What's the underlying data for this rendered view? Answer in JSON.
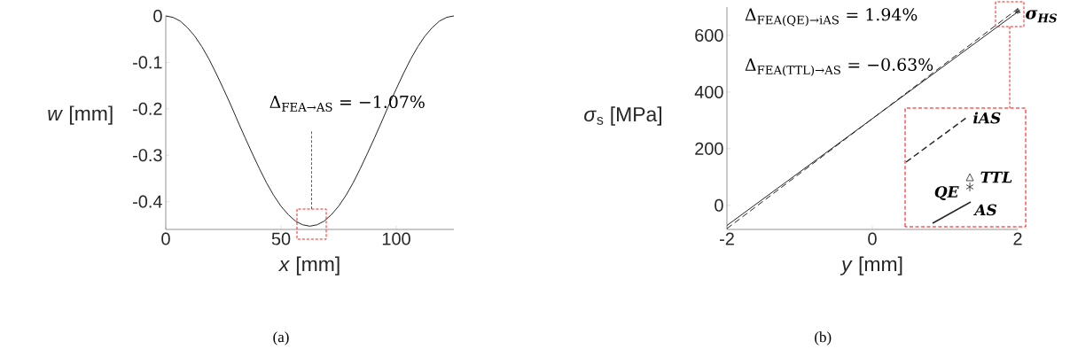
{
  "chart_data": [
    {
      "type": "line",
      "xlabel": "*x* [mm]",
      "ylabel": "*w* [mm]",
      "xlim": [
        0,
        125
      ],
      "ylim": [
        -0.46,
        0
      ],
      "xticks": [
        0,
        50,
        100
      ],
      "yticks": [
        0,
        -0.1,
        -0.2,
        -0.3,
        -0.4
      ],
      "x": [
        0,
        3.125,
        6.25,
        9.375,
        12.5,
        15.625,
        18.75,
        21.875,
        25,
        28.125,
        31.25,
        34.375,
        37.5,
        40.625,
        43.75,
        46.875,
        50,
        53.125,
        56.25,
        59.375,
        62.5,
        65.625,
        68.75,
        71.875,
        75,
        78.125,
        81.25,
        84.375,
        87.5,
        90.625,
        93.75,
        96.875,
        100,
        103.125,
        106.25,
        109.375,
        112.5,
        115.625,
        118.75,
        121.875,
        125
      ],
      "series": [
        {
          "color": "#222222",
          "line_style": "solid",
          "values": [
            0,
            -0.003,
            -0.011,
            -0.025,
            -0.043,
            -0.066,
            -0.093,
            -0.124,
            -0.157,
            -0.191,
            -0.227,
            -0.262,
            -0.296,
            -0.329,
            -0.36,
            -0.387,
            -0.41,
            -0.428,
            -0.442,
            -0.45,
            -0.453,
            -0.45,
            -0.442,
            -0.428,
            -0.41,
            -0.387,
            -0.36,
            -0.329,
            -0.296,
            -0.262,
            -0.227,
            -0.191,
            -0.157,
            -0.124,
            -0.093,
            -0.066,
            -0.043,
            -0.025,
            -0.011,
            -0.003,
            0
          ]
        }
      ],
      "annotations": [
        "Δ$_{FEA→AS}$ = −1.07%",
        "(a)"
      ]
    },
    {
      "type": "line",
      "xlabel": "*y* [mm]",
      "ylabel": "*σ*$_{s}$ [MPa]",
      "xlim": [
        -2,
        2
      ],
      "ylim": [
        -85,
        700
      ],
      "xticks": [
        -2,
        0,
        2
      ],
      "yticks": [
        0,
        200,
        400,
        600
      ],
      "x": [
        -2,
        2
      ],
      "series": [
        {
          "color": "#222222",
          "line_style": "solid",
          "values": [
            -71,
            683
          ]
        },
        {
          "color": "#222222",
          "line_style": "dashed",
          "values": [
            -82,
            694
          ]
        },
        {
          "type": "scatter",
          "color": "#333333",
          "marker": "cross",
          "values": [
            null,
            685
          ]
        },
        {
          "type": "scatter",
          "color": "#333333",
          "marker": "triangle",
          "values": [
            null,
            686
          ]
        }
      ],
      "annotations": [
        "Δ$_{FEA(QE)→iAS}$ = 1.94%",
        "Δ$_{FEA(TTL)→AS}$ = −0.63%",
        {
          "text": "σ$_{HS}$",
          "x": 2,
          "y": 686
        },
        "iAS",
        "TTL",
        "QE",
        "AS",
        "(b)"
      ]
    }
  ]
}
